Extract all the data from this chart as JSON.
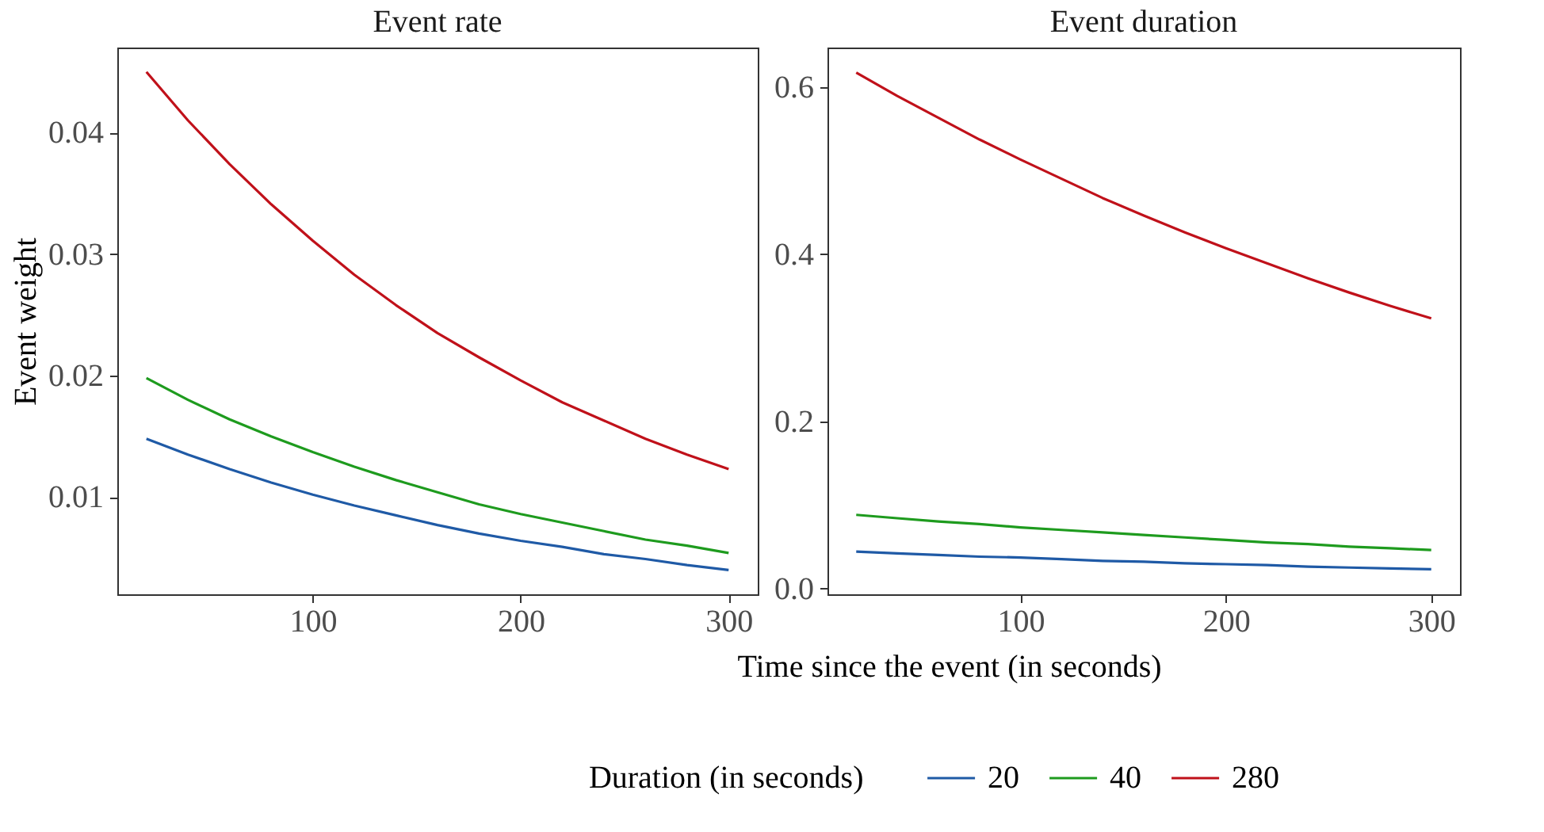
{
  "chart_data": [
    {
      "type": "line",
      "title": "Event rate",
      "xlabel": "Time since the event (in seconds)",
      "ylabel": "Event weight",
      "legend_title": "Duration (in seconds)",
      "legend": "bottom",
      "x": [
        20,
        40,
        60,
        80,
        100,
        120,
        140,
        160,
        180,
        200,
        220,
        240,
        260,
        280,
        300
      ],
      "xlim": [
        6,
        314
      ],
      "xticks": [
        100,
        200,
        300
      ],
      "ylim": [
        0.002,
        0.047
      ],
      "yticks": [
        0.01,
        0.02,
        0.03,
        0.04
      ],
      "series": [
        {
          "name": "20",
          "color": "#1f5aa6",
          "values": [
            0.0148,
            0.0135,
            0.0123,
            0.0112,
            0.0102,
            0.0093,
            0.0085,
            0.0077,
            0.007,
            0.0064,
            0.0059,
            0.0053,
            0.0049,
            0.0044,
            0.004
          ]
        },
        {
          "name": "40",
          "color": "#1e9b1e",
          "values": [
            0.0198,
            0.018,
            0.0164,
            0.015,
            0.0137,
            0.0125,
            0.0114,
            0.0104,
            0.0094,
            0.0086,
            0.0079,
            0.0072,
            0.0065,
            0.006,
            0.0054
          ]
        },
        {
          "name": "280",
          "color": "#c0111a",
          "values": [
            0.045,
            0.041,
            0.0374,
            0.0341,
            0.0311,
            0.0283,
            0.0258,
            0.0235,
            0.0215,
            0.0196,
            0.0178,
            0.0163,
            0.0148,
            0.0135,
            0.0123
          ]
        }
      ]
    },
    {
      "type": "line",
      "title": "Event duration",
      "legend": "bottom",
      "x": [
        20,
        40,
        60,
        80,
        100,
        120,
        140,
        160,
        180,
        200,
        220,
        240,
        260,
        280,
        300
      ],
      "xlim": [
        6,
        314
      ],
      "xticks": [
        100,
        200,
        300
      ],
      "ylim": [
        -0.007,
        0.647
      ],
      "yticks": [
        {
          "value": 0,
          "label": "0.0"
        },
        0.2,
        0.4,
        0.6
      ],
      "series": [
        {
          "name": "20",
          "color": "#1f5aa6",
          "values": [
            0.044,
            0.042,
            0.04,
            0.038,
            0.037,
            0.035,
            0.033,
            0.032,
            0.03,
            0.029,
            0.028,
            0.026,
            0.025,
            0.024,
            0.023
          ]
        },
        {
          "name": "40",
          "color": "#1e9b1e",
          "values": [
            0.088,
            0.084,
            0.08,
            0.077,
            0.073,
            0.07,
            0.067,
            0.064,
            0.061,
            0.058,
            0.055,
            0.053,
            0.05,
            0.048,
            0.046
          ]
        },
        {
          "name": "280",
          "color": "#c0111a",
          "values": [
            0.617,
            0.589,
            0.563,
            0.537,
            0.513,
            0.49,
            0.467,
            0.446,
            0.426,
            0.407,
            0.389,
            0.371,
            0.354,
            0.338,
            0.323
          ]
        }
      ]
    }
  ]
}
